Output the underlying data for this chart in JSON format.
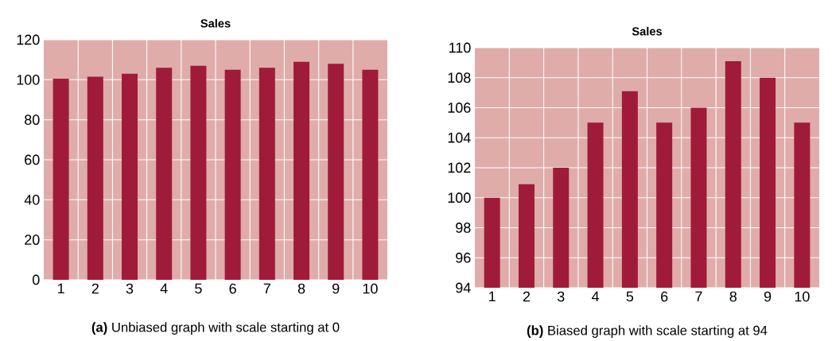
{
  "chart_data": [
    {
      "type": "bar",
      "title": "Sales",
      "categories": [
        "1",
        "2",
        "3",
        "4",
        "5",
        "6",
        "7",
        "8",
        "9",
        "10"
      ],
      "values": [
        100.5,
        101.5,
        103,
        106,
        107,
        105,
        106,
        109,
        108,
        105
      ],
      "color": "#a01b39",
      "ylim": [
        0,
        120
      ],
      "yticks": [
        0,
        20,
        40,
        60,
        80,
        100,
        120
      ],
      "grid": true,
      "annotations": [
        "**(a)** Unbiased graph with scale starting at 0"
      ]
    },
    {
      "type": "bar",
      "title": "Sales",
      "categories": [
        "1",
        "2",
        "3",
        "4",
        "5",
        "6",
        "7",
        "8",
        "9",
        "10"
      ],
      "values": [
        100,
        100.9,
        102,
        105,
        107.1,
        105,
        106,
        109.1,
        108,
        105
      ],
      "color": "#a01b39",
      "ylim": [
        94,
        110
      ],
      "yticks": [
        94,
        96,
        98,
        100,
        102,
        104,
        106,
        108,
        110
      ],
      "grid": true,
      "annotations": [
        "**(b)** Biased graph with scale starting at 94"
      ]
    }
  ]
}
